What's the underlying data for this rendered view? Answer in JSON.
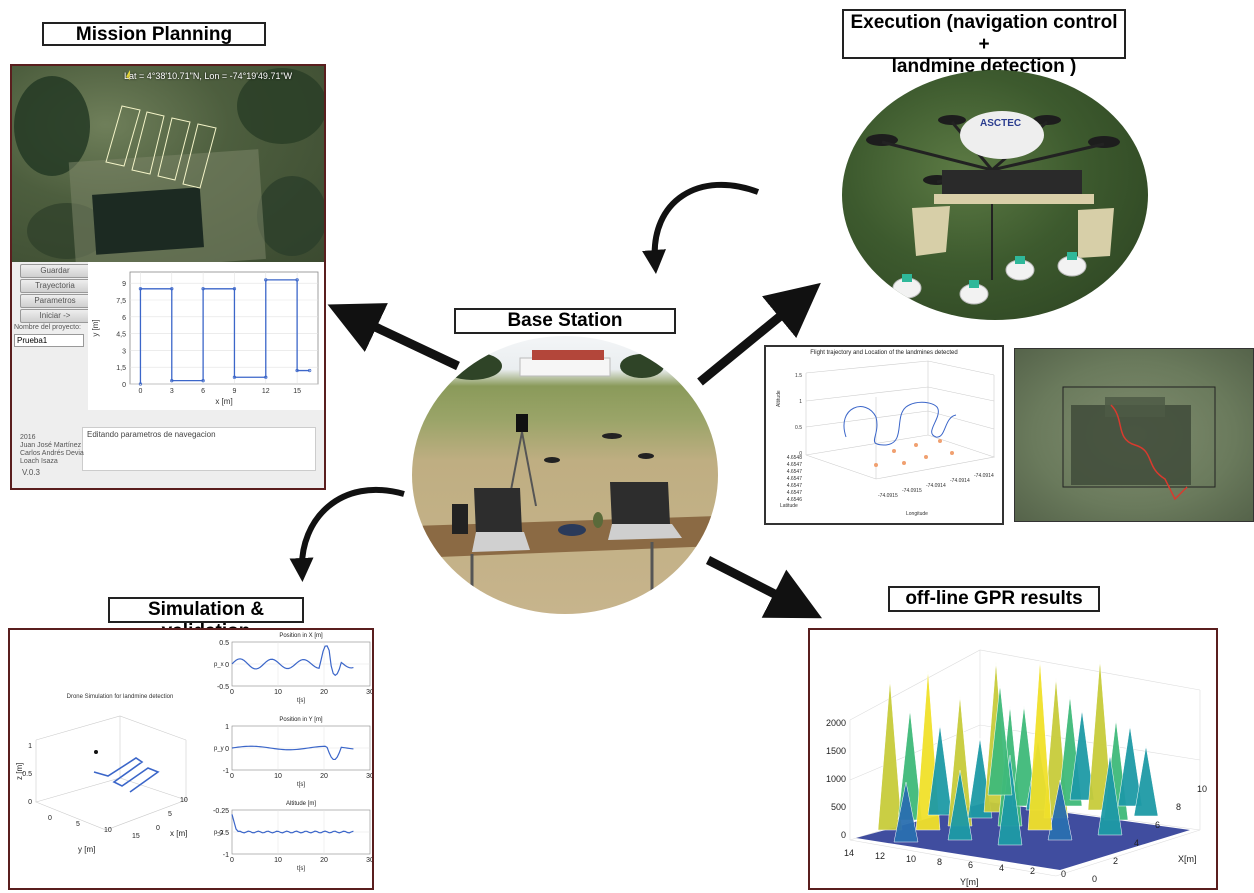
{
  "titles": {
    "mission": "Mission Planning",
    "execution_line1": "Execution (navigation control +",
    "execution_line2": "landmine detection )",
    "base": "Base Station",
    "simulation": "Simulation & validation",
    "gpr": "off-line GPR results"
  },
  "mission_app": {
    "map_coords": "Lat = 4°38'10.71\"N, Lon = -74°19'49.71\"W",
    "buttons": [
      "Guardar",
      "Trayectoria",
      "Parametros",
      "Iniciar ->"
    ],
    "project_label": "Nombre del proyecto:",
    "project_value": "Prueba1",
    "status_text": "Editando parametros de navegacion",
    "credits": [
      "2016",
      "Juan José Martínez",
      "Carlos Andrés Devia",
      "Loach Isaza"
    ],
    "version": "V.0.3"
  },
  "flight": {
    "title": "Flight trajectory and Location of the landmines detected",
    "xlabel": "Longitude",
    "ylabel": "Latitude",
    "zlabel": "Altitude",
    "lat_ticks": [
      "4.6548",
      "4.6547",
      "4.6547",
      "4.6547",
      "4.6547",
      "4.6547",
      "4.6546"
    ],
    "lon_ticks": [
      "-74.0915",
      "-74.0915",
      "-74.0914",
      "-74.0914",
      "-74.0914"
    ],
    "z_ticks": [
      "1.5",
      "1",
      "0.5",
      "0"
    ]
  },
  "sim": {
    "drone_title": "Drone Simulation for landmine detection",
    "pos_x_title": "Position in X [m]",
    "pos_y_title": "Position in Y [m]",
    "alt_title": "Altitude [m]",
    "px_label": "p_x",
    "py_label": "p_y",
    "pz_label": "p_z",
    "t_label": "t[s]",
    "zlabel": "z [m]",
    "ylabel3d": "y [m]",
    "xlabel3d": "x [m]",
    "x_ticks": [
      "0",
      "10",
      "20",
      "30"
    ],
    "px_yticks": [
      "0.5",
      "0",
      "-0.5"
    ],
    "py_yticks": [
      "1",
      "0",
      "-1"
    ],
    "pz_yticks": [
      "-0.25",
      "-0.5",
      "-1"
    ],
    "sim_z_ticks": [
      "1",
      "0.5",
      "0"
    ],
    "sim_y_ticks": [
      "0",
      "5",
      "10",
      "15"
    ],
    "sim_x_ticks": [
      "0",
      "5",
      "10"
    ]
  },
  "gpr": {
    "z_ticks": [
      "2000",
      "1500",
      "1000",
      "500",
      "0"
    ],
    "y_ticks": [
      "14",
      "12",
      "10",
      "8",
      "6",
      "4",
      "2",
      "0"
    ],
    "x_ticks": [
      "0",
      "2",
      "4",
      "6",
      "8",
      "10"
    ],
    "ylabel": "Y[m]",
    "xlabel": "X[m]"
  },
  "chart_data": [
    {
      "type": "line",
      "title": "",
      "xlabel": "x [m]",
      "ylabel": "y [m]",
      "xlim": [
        -1,
        17
      ],
      "ylim": [
        0,
        10
      ],
      "x_ticks": [
        "0",
        "3",
        "6",
        "9",
        "12",
        "15"
      ],
      "y_ticks": [
        "9",
        "7,5",
        "6",
        "4,5",
        "3",
        "1,5",
        "0"
      ],
      "x": [
        0,
        0,
        3,
        3,
        6,
        6,
        9,
        9,
        12,
        12,
        15,
        15,
        16.2
      ],
      "y": [
        0,
        8.5,
        8.5,
        0.3,
        0.3,
        8.5,
        8.5,
        0.6,
        0.6,
        9.3,
        9.3,
        1.2,
        1.2
      ]
    }
  ],
  "colors": {
    "panel_border": "#5a1e1e",
    "plot_line": "#3b66c9",
    "arrow": "#111111",
    "marker": "#f0a070"
  }
}
